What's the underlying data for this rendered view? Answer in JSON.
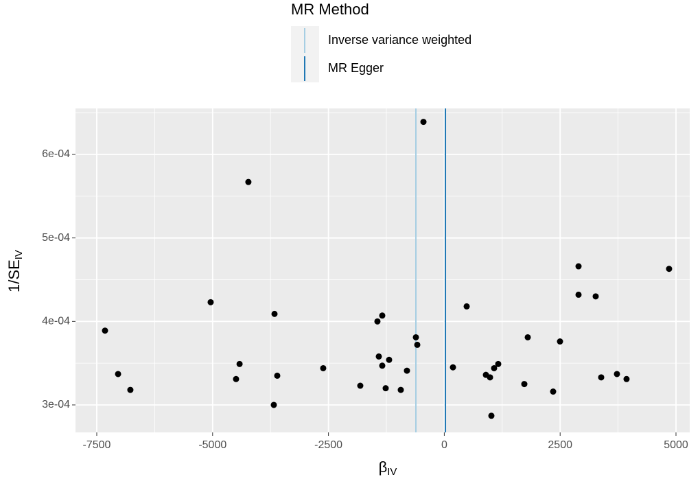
{
  "chart_data": {
    "type": "scatter",
    "xlabel": "β",
    "xlabel_sub": "IV",
    "ylabel": "1/SE",
    "ylabel_sub": "IV",
    "legend_title": "MR Method",
    "legend_position": "top",
    "reference_lines": [
      {
        "name": "Inverse variance weighted",
        "color": "#a6cee3",
        "value": -613
      },
      {
        "name": "MR Egger",
        "color": "#1f78b4",
        "value": 24
      }
    ],
    "point_color": "#000000",
    "x": [
      -450,
      -4228,
      -7322,
      -7040,
      -6775,
      -5042,
      -3664,
      -4418,
      -4494,
      -3605,
      -3679,
      -2613,
      -1813,
      -1443,
      -1339,
      -1413,
      -1339,
      -1191,
      -1265,
      -939,
      -806,
      -613,
      -583,
      187,
      483,
      898,
      987,
      1075,
      1164,
      1016,
      1727,
      1801,
      2349,
      2497,
      2897,
      2897,
      3267,
      3386,
      3726,
      3933,
      4851
    ],
    "y": [
      0.000639,
      0.000567,
      0.000389,
      0.000337,
      0.000318,
      0.000423,
      0.000409,
      0.000349,
      0.000331,
      0.000335,
      0.0003,
      0.000344,
      0.000323,
      0.0004,
      0.000407,
      0.000358,
      0.000347,
      0.000354,
      0.00032,
      0.000318,
      0.000341,
      0.000381,
      0.000372,
      0.000345,
      0.000418,
      0.000336,
      0.000333,
      0.000344,
      0.000349,
      0.000287,
      0.000325,
      0.000381,
      0.000316,
      0.000376,
      0.000466,
      0.000432,
      0.00043,
      0.000333,
      0.000337,
      0.000331,
      0.000463
    ],
    "xlim": [
      -7959,
      5296
    ],
    "ylim": [
      0.0002671,
      0.0006551
    ],
    "xticks": [
      -7500,
      -5000,
      -2500,
      0,
      2500,
      5000
    ],
    "yticks": [
      {
        "value": 0.0003,
        "label": "3e-04"
      },
      {
        "value": 0.0004,
        "label": "4e-04"
      },
      {
        "value": 0.0005,
        "label": "5e-04"
      },
      {
        "value": 0.0006,
        "label": "6e-04"
      }
    ],
    "grid": true
  }
}
